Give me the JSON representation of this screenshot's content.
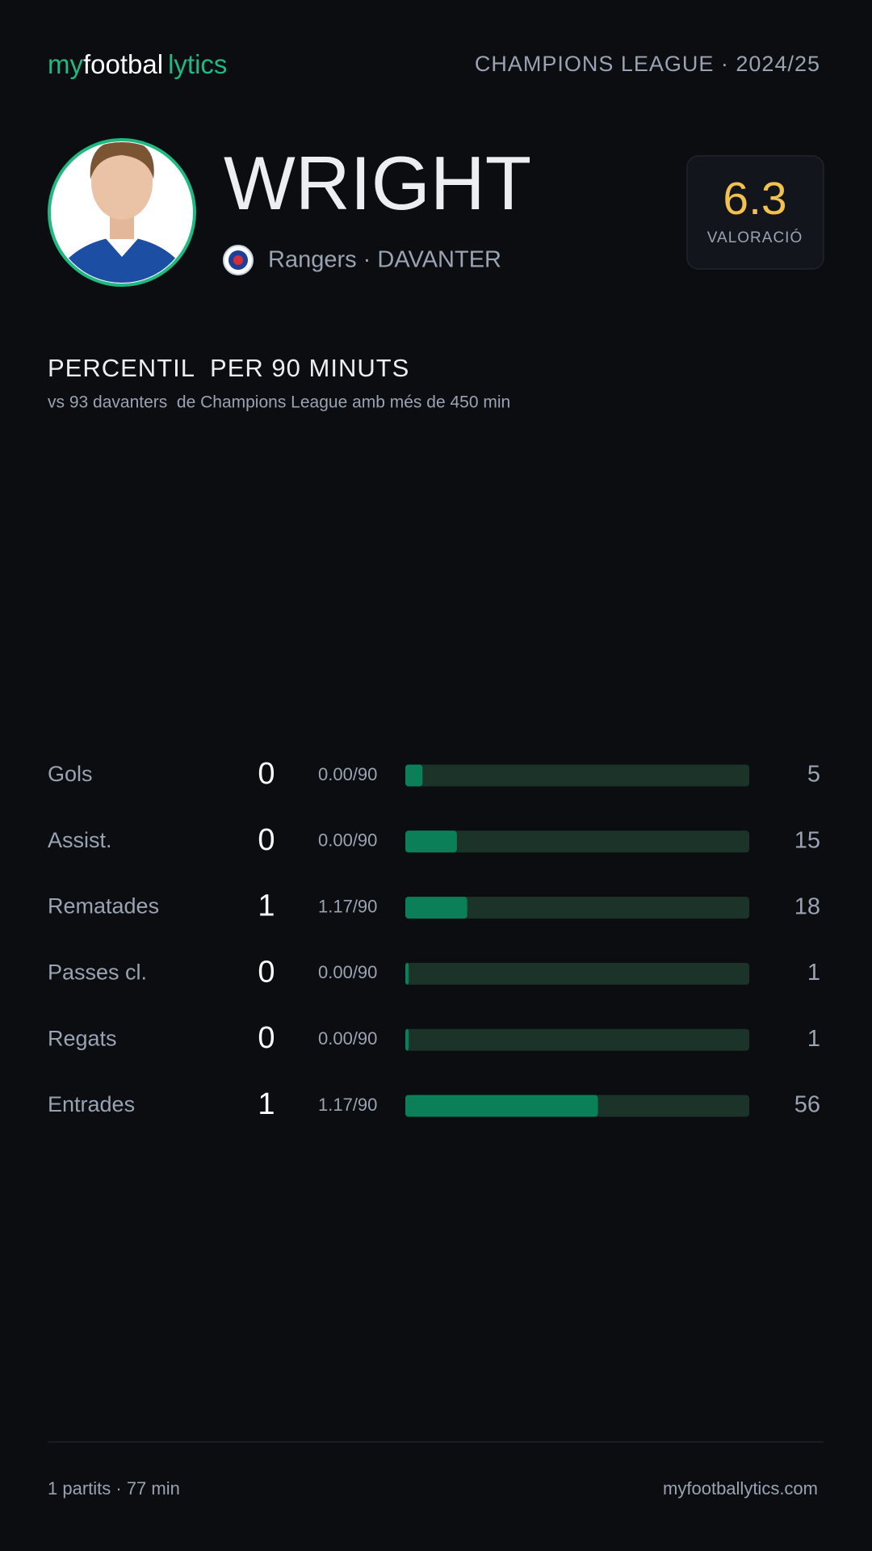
{
  "header": {
    "logo": [
      "my",
      "footbal",
      "lytics"
    ],
    "competition": "CHAMPIONS LEAGUE · 2024/25"
  },
  "player": {
    "name": "WRIGHT",
    "club_line": "Rangers · DAVANTER",
    "rating": 6.3,
    "rating_label": "VALORACIÓ"
  },
  "section": {
    "title": "PERCENTIL  PER 90 MINUTS",
    "subtitle": "vs 93 davanters  de Champions League amb més de 450 min"
  },
  "stats": {
    "rows": [
      {
        "label": "Gols",
        "value": 0,
        "per90": "0.00/90",
        "percentile": 5
      },
      {
        "label": "Assist.",
        "value": 0,
        "per90": "0.00/90",
        "percentile": 15
      },
      {
        "label": "Rematades",
        "value": 1,
        "per90": "1.17/90",
        "percentile": 18
      },
      {
        "label": "Passes cl.",
        "value": 0,
        "per90": "0.00/90",
        "percentile": 1
      },
      {
        "label": "Regats",
        "value": 0,
        "per90": "0.00/90",
        "percentile": 1
      },
      {
        "label": "Entrades",
        "value": 1,
        "per90": "1.17/90",
        "percentile": 56
      }
    ]
  },
  "footer": {
    "left": "1 partits · 77 min",
    "right": "myfootballytics.com"
  }
}
